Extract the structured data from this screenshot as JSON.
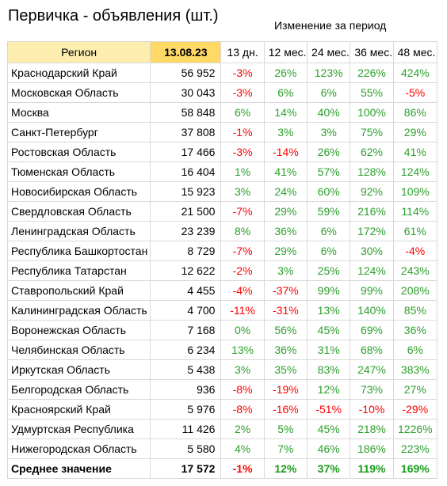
{
  "title": "Первичка - объявления (шт.)",
  "subtitle": "Изменение за период",
  "colors": {
    "positive": "#2ca02c",
    "negative": "#ff0000",
    "header_region_bg": "#fdeeb0",
    "header_date_bg": "#ffd966"
  },
  "table": {
    "headers": [
      "Регион",
      "13.08.23",
      "13 дн.",
      "12 мес.",
      "24 мес.",
      "36 мес.",
      "48 мес."
    ],
    "rows": [
      {
        "region": "Краснодарский Край",
        "count": "56 952",
        "changes": [
          "-3%",
          "26%",
          "123%",
          "226%",
          "424%"
        ]
      },
      {
        "region": "Московская Область",
        "count": "30 043",
        "changes": [
          "-3%",
          "6%",
          "6%",
          "55%",
          "-5%"
        ]
      },
      {
        "region": "Москва",
        "count": "58 848",
        "changes": [
          "6%",
          "14%",
          "40%",
          "100%",
          "86%"
        ]
      },
      {
        "region": "Санкт-Петербург",
        "count": "37 808",
        "changes": [
          "-1%",
          "3%",
          "3%",
          "75%",
          "29%"
        ]
      },
      {
        "region": "Ростовская Область",
        "count": "17 466",
        "changes": [
          "-3%",
          "-14%",
          "26%",
          "62%",
          "41%"
        ]
      },
      {
        "region": "Тюменская Область",
        "count": "16 404",
        "changes": [
          "1%",
          "41%",
          "57%",
          "128%",
          "124%"
        ]
      },
      {
        "region": "Новосибирская Область",
        "count": "15 923",
        "changes": [
          "3%",
          "24%",
          "60%",
          "92%",
          "109%"
        ]
      },
      {
        "region": "Свердловская Область",
        "count": "21 500",
        "changes": [
          "-7%",
          "29%",
          "59%",
          "216%",
          "114%"
        ]
      },
      {
        "region": "Ленинградская Область",
        "count": "23 239",
        "changes": [
          "8%",
          "36%",
          "6%",
          "172%",
          "61%"
        ]
      },
      {
        "region": "Республика Башкортостан",
        "count": "8 729",
        "changes": [
          "-7%",
          "29%",
          "6%",
          "30%",
          "-4%"
        ]
      },
      {
        "region": "Республика Татарстан",
        "count": "12 622",
        "changes": [
          "-2%",
          "3%",
          "25%",
          "124%",
          "243%"
        ]
      },
      {
        "region": "Ставропольский Край",
        "count": "4 455",
        "changes": [
          "-4%",
          "-37%",
          "99%",
          "99%",
          "208%"
        ]
      },
      {
        "region": "Калининградская Область",
        "count": "4 700",
        "changes": [
          "-11%",
          "-31%",
          "13%",
          "140%",
          "85%"
        ]
      },
      {
        "region": "Воронежская Область",
        "count": "7 168",
        "changes": [
          "0%",
          "56%",
          "45%",
          "69%",
          "36%"
        ]
      },
      {
        "region": "Челябинская Область",
        "count": "6 234",
        "changes": [
          "13%",
          "36%",
          "31%",
          "68%",
          "6%"
        ]
      },
      {
        "region": "Иркутская Область",
        "count": "5 438",
        "changes": [
          "3%",
          "35%",
          "83%",
          "247%",
          "383%"
        ]
      },
      {
        "region": "Белгородская Область",
        "count": "936",
        "changes": [
          "-8%",
          "-19%",
          "12%",
          "73%",
          "27%"
        ]
      },
      {
        "region": "Красноярский Край",
        "count": "5 976",
        "changes": [
          "-8%",
          "-16%",
          "-51%",
          "-10%",
          "-29%"
        ]
      },
      {
        "region": "Удмуртская Республика",
        "count": "11 426",
        "changes": [
          "2%",
          "5%",
          "45%",
          "218%",
          "1226%"
        ]
      },
      {
        "region": "Нижегородская Область",
        "count": "5 580",
        "changes": [
          "4%",
          "7%",
          "46%",
          "186%",
          "223%"
        ]
      }
    ],
    "average": {
      "region": "Среднее значение",
      "count": "17 572",
      "changes": [
        "-1%",
        "12%",
        "37%",
        "119%",
        "169%"
      ]
    }
  }
}
